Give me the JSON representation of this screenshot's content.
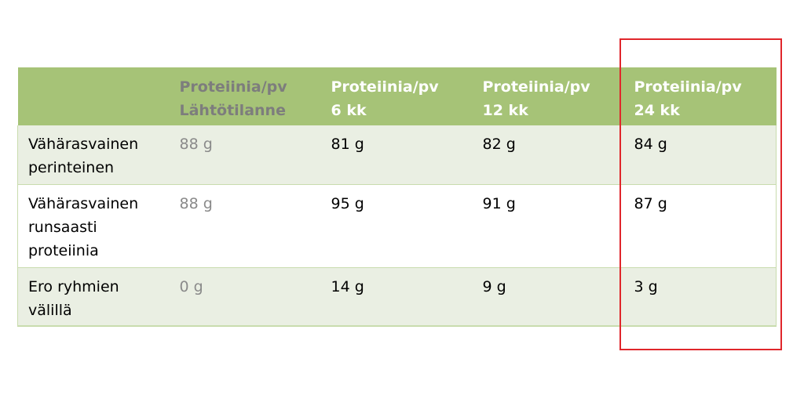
{
  "table": {
    "headers": [
      {
        "line1": "",
        "line2": ""
      },
      {
        "line1": "Proteiinia/pv",
        "line2": "Lähtötilanne"
      },
      {
        "line1": "Proteiinia/pv",
        "line2": "6 kk"
      },
      {
        "line1": "Proteiinia/pv",
        "line2": "12 kk"
      },
      {
        "line1": "Proteiinia/pv",
        "line2": "24 kk"
      }
    ],
    "rows": [
      {
        "label": [
          "Vähärasvainen",
          "perinteinen"
        ],
        "baseline": "88 g",
        "m6": "81 g",
        "m12": "82 g",
        "m24": "84 g"
      },
      {
        "label": [
          "Vähärasvainen",
          "runsaasti",
          "proteiinia"
        ],
        "baseline": "88 g",
        "m6": "95 g",
        "m12": "91 g",
        "m24": "87 g"
      },
      {
        "label": [
          "Ero ryhmien",
          "välillä"
        ],
        "baseline": "0 g",
        "m6": "14 g",
        "m12": "9 g",
        "m24": "3 g"
      }
    ]
  },
  "colors": {
    "header_bg": "#a6c377",
    "row_alt_bg": "#eaefe3",
    "highlight_border": "#e0262b",
    "muted_text": "#8a8a8a"
  }
}
